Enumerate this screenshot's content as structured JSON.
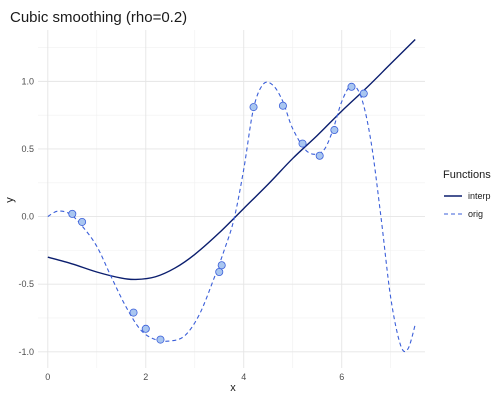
{
  "chart_data": {
    "type": "line",
    "title": "Cubic smoothing (rho=0.2)",
    "xlabel": "x",
    "ylabel": "y",
    "xlim": [
      -0.2,
      7.7
    ],
    "ylim": [
      -1.12,
      1.38
    ],
    "xticks": [
      0,
      2,
      4,
      6
    ],
    "yticks": [
      -1.0,
      -0.5,
      0.0,
      0.5,
      1.0
    ],
    "ytick_labels": [
      "-1.0",
      "-0.5",
      "0.0",
      "0.5",
      "1.0"
    ],
    "grid": true,
    "legend": {
      "title": "Functions",
      "position": "right"
    },
    "series": [
      {
        "name": "interp",
        "style": "solid",
        "color": "#0b1e6e",
        "x": [
          0.0,
          0.5,
          1.0,
          1.5,
          1.8,
          2.2,
          2.6,
          3.0,
          3.5,
          4.0,
          4.5,
          5.0,
          5.5,
          6.0,
          6.5,
          7.0,
          7.5
        ],
        "y": [
          -0.3,
          -0.35,
          -0.41,
          -0.455,
          -0.465,
          -0.445,
          -0.38,
          -0.28,
          -0.12,
          0.06,
          0.24,
          0.43,
          0.6,
          0.78,
          0.95,
          1.13,
          1.31
        ]
      },
      {
        "name": "orig",
        "style": "dashed",
        "color": "#3b5fd9",
        "x": [
          0.0,
          0.2,
          0.45,
          0.7,
          1.0,
          1.3,
          1.6,
          1.9,
          2.2,
          2.5,
          2.8,
          3.1,
          3.4,
          3.6,
          3.8,
          4.0,
          4.2,
          4.4,
          4.6,
          4.8,
          5.0,
          5.3,
          5.6,
          5.8,
          6.0,
          6.2,
          6.4,
          6.6,
          6.8,
          7.0,
          7.2,
          7.35,
          7.5
        ],
        "y": [
          0.0,
          0.04,
          0.02,
          -0.07,
          -0.22,
          -0.45,
          -0.67,
          -0.84,
          -0.91,
          -0.92,
          -0.88,
          -0.72,
          -0.45,
          -0.25,
          -0.02,
          0.35,
          0.8,
          0.98,
          0.97,
          0.85,
          0.65,
          0.48,
          0.48,
          0.62,
          0.85,
          0.97,
          0.88,
          0.55,
          0.0,
          -0.6,
          -0.95,
          -0.98,
          -0.8
        ]
      }
    ],
    "points": {
      "fill": "#a9c6f0",
      "stroke": "#3b5fd9",
      "x": [
        0.5,
        0.7,
        1.75,
        2.0,
        2.3,
        3.5,
        3.55,
        4.2,
        4.8,
        5.2,
        5.55,
        5.85,
        6.2,
        6.45
      ],
      "y": [
        0.02,
        -0.04,
        -0.71,
        -0.83,
        -0.91,
        -0.41,
        -0.36,
        0.81,
        0.82,
        0.54,
        0.45,
        0.64,
        0.96,
        0.91
      ]
    }
  }
}
